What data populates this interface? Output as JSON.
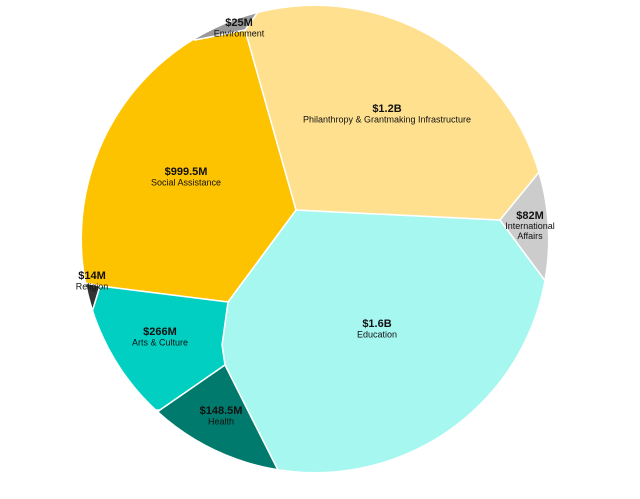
{
  "chart_data": {
    "type": "voronoi",
    "categories": [
      "Education",
      "Philanthropy & Grantmaking Infrastructure",
      "Social Assistance",
      "Arts & Culture",
      "Health",
      "International Affairs",
      "Environment",
      "Religion"
    ],
    "values": [
      1600000000,
      1200000000,
      999500000,
      266000000,
      148500000,
      82000000,
      25000000,
      14000000
    ],
    "value_labels": [
      "$1.6B",
      "$1.2B",
      "$999.5M",
      "$266M",
      "$148.5M",
      "$82M",
      "$25M",
      "$14M"
    ],
    "colors": [
      "#a6f7f0",
      "#fee08e",
      "#fdc200",
      "#00cfc1",
      "#007a6c",
      "#cccccc",
      "#999999",
      "#333333"
    ]
  }
}
